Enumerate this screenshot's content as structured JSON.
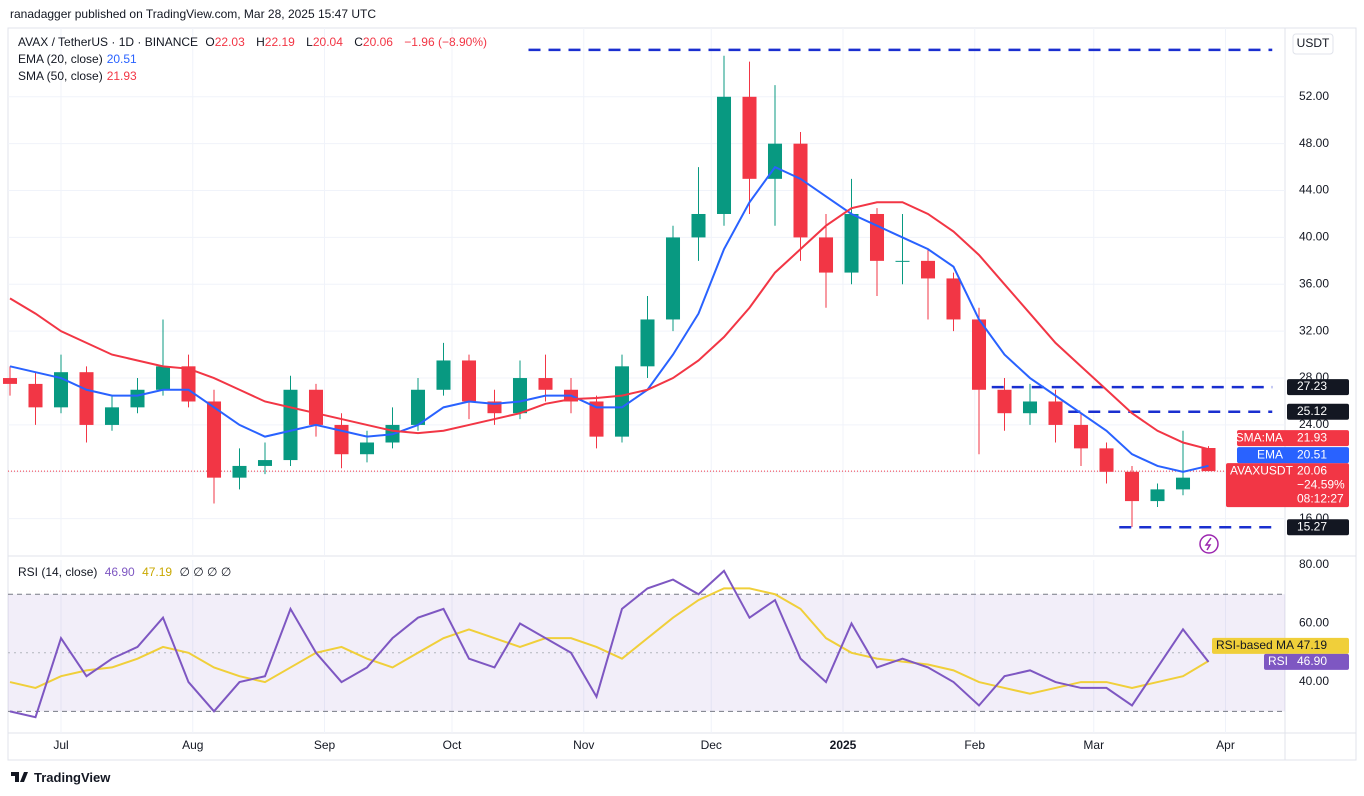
{
  "header": {
    "published": "ranadagger published on TradingView.com, Mar 28, 2025 15:47 UTC"
  },
  "footer": {
    "brand": "TradingView"
  },
  "chart_data": [
    {
      "type": "candlestick",
      "symbol": "AVAX / TetherUS · 1D · BINANCE",
      "legend_keys": [
        "O",
        "H",
        "L",
        "C"
      ],
      "change": "−1.96 (−8.90%)",
      "currency": "USDT",
      "price_label_name": "AVAXUSDT",
      "price_label_change": "−24.59%",
      "price_label_timer": "08:12:27",
      "up_color": "#089981",
      "down_color": "#f23645",
      "x": [
        0,
        6,
        12,
        18,
        24,
        30,
        36,
        42,
        48,
        54,
        60,
        66,
        72,
        78,
        84,
        90,
        96,
        102,
        108,
        114,
        120,
        126,
        132,
        138,
        144,
        150,
        156,
        162,
        168,
        174,
        180,
        186,
        192,
        198,
        204,
        210,
        216,
        222,
        228,
        234,
        240,
        246,
        252,
        258,
        264,
        270,
        276,
        282
      ],
      "open": [
        28,
        27.5,
        25.5,
        28.5,
        24,
        25.5,
        27,
        29,
        26,
        19.5,
        20.5,
        21,
        27,
        24,
        21.5,
        22.5,
        24,
        27,
        29.5,
        26,
        25,
        28,
        27,
        26,
        23,
        29,
        33,
        40,
        42,
        52,
        45,
        48,
        40,
        37,
        42,
        38,
        38,
        36.5,
        33,
        27,
        25,
        26,
        24,
        22,
        20,
        17.5,
        18.5,
        22.03
      ],
      "high": [
        29,
        28.5,
        30,
        29,
        26.5,
        28,
        33,
        30,
        27,
        22,
        22.5,
        28.2,
        27.5,
        25,
        23.5,
        25.5,
        28,
        31,
        30,
        27,
        29.5,
        30,
        28,
        26.5,
        30,
        35,
        41,
        46,
        55.5,
        55,
        53,
        49,
        42,
        45,
        42.5,
        42,
        39,
        37,
        34,
        28,
        27.5,
        27,
        25,
        22.5,
        20.5,
        19,
        23.5,
        22.19
      ],
      "low": [
        26.5,
        24,
        25,
        22.5,
        23.5,
        25,
        26.5,
        25.5,
        17.3,
        18.5,
        19.8,
        20.5,
        23,
        20.3,
        20.8,
        22,
        23.5,
        26.5,
        24.5,
        24,
        24.5,
        26,
        25,
        22,
        22.5,
        28,
        32,
        38,
        41,
        42,
        41,
        38,
        34,
        36,
        35,
        36,
        33,
        32,
        21.5,
        23.5,
        24,
        22.5,
        20.5,
        19,
        15.3,
        17,
        18,
        20.04
      ],
      "close": [
        27.5,
        25.5,
        28.5,
        24,
        25.5,
        27,
        29,
        26,
        19.5,
        20.5,
        21,
        27,
        24,
        21.5,
        22.5,
        24,
        27,
        29.5,
        26,
        25,
        28,
        27,
        26,
        23,
        29,
        33,
        40,
        42,
        52,
        45,
        48,
        40,
        37,
        42,
        38,
        38,
        36.5,
        33,
        27,
        25,
        26,
        24,
        22,
        20,
        17.5,
        18.5,
        19.5,
        20.06
      ],
      "overlays": [
        {
          "name": "EMA (20, close)",
          "axis_label": "EMA",
          "color": "#2962ff",
          "values": [
            29,
            28.5,
            28,
            27,
            26.5,
            26.5,
            27,
            27,
            25.5,
            24,
            23,
            23.5,
            24,
            23.5,
            23,
            23.2,
            24,
            25.5,
            26,
            25.8,
            26,
            26.5,
            26.5,
            25.5,
            25.5,
            27,
            30,
            33.5,
            39,
            43,
            46,
            45,
            43.5,
            42,
            41,
            40,
            39,
            37.5,
            33,
            30,
            28,
            26.5,
            25,
            23.5,
            21.5,
            20.5,
            20,
            20.51
          ]
        },
        {
          "name": "SMA (50, close)",
          "axis_label": "SMA:MA",
          "color": "#f23645",
          "values": [
            34.8,
            33.5,
            32,
            31,
            30,
            29.5,
            29,
            28.8,
            28,
            27,
            26,
            25.5,
            25,
            24.5,
            24,
            23.5,
            23.3,
            23.5,
            24,
            24.5,
            25,
            25.8,
            26.2,
            26.3,
            26.5,
            27,
            28,
            29.5,
            31.5,
            34,
            37,
            39,
            41,
            42.5,
            43,
            43,
            42,
            40.5,
            38.5,
            36,
            33.5,
            31,
            29,
            27,
            25,
            23.5,
            22.5,
            21.93
          ]
        }
      ],
      "levels": [
        {
          "value": 56,
          "x_from": 122,
          "x_to": 297
        },
        {
          "value": 27.23,
          "x_from": 231,
          "x_to": 297
        },
        {
          "value": 25.12,
          "x_from": 249,
          "x_to": 297
        },
        {
          "value": 15.27,
          "x_from": 261,
          "x_to": 297
        }
      ],
      "level_color": "#1a2fd0",
      "xlim": [
        0,
        300
      ],
      "xticks": [
        {
          "value": 12,
          "label": "Jul"
        },
        {
          "value": 43,
          "label": "Aug"
        },
        {
          "value": 74,
          "label": "Sep"
        },
        {
          "value": 104,
          "label": "Oct"
        },
        {
          "value": 135,
          "label": "Nov"
        },
        {
          "value": 165,
          "label": "Dec"
        },
        {
          "value": 196,
          "label": "2025"
        },
        {
          "value": 227,
          "label": "Feb"
        },
        {
          "value": 255,
          "label": "Mar"
        },
        {
          "value": 286,
          "label": "Apr"
        }
      ],
      "ylim": [
        12.9,
        57.7
      ],
      "yticks": [
        {
          "value": 16,
          "label": "16.00"
        },
        {
          "value": 20,
          "label": "20.00"
        },
        {
          "value": 24,
          "label": "24.00"
        },
        {
          "value": 28,
          "label": "28.00"
        },
        {
          "value": 32,
          "label": "32.00"
        },
        {
          "value": 36,
          "label": "36.00"
        },
        {
          "value": 40,
          "label": "40.00"
        },
        {
          "value": 44,
          "label": "44.00"
        },
        {
          "value": 48,
          "label": "48.00"
        },
        {
          "value": 52,
          "label": "52.00"
        }
      ],
      "grid": true
    },
    {
      "type": "line",
      "title": "RSI (14, close)",
      "empty_fields": "∅ ∅ ∅ ∅",
      "band": [
        30,
        70
      ],
      "midline": 50,
      "series": [
        {
          "name": "RSI",
          "color": "#7e57c2",
          "last_label": "46.90",
          "values": [
            30,
            28,
            55,
            42,
            48,
            52,
            62,
            40,
            30,
            40,
            42,
            65,
            50,
            40,
            45,
            55,
            62,
            65,
            48,
            45,
            60,
            55,
            50,
            35,
            65,
            72,
            75,
            70,
            78,
            62,
            68,
            48,
            40,
            60,
            45,
            48,
            45,
            40,
            32,
            42,
            44,
            40,
            38,
            38,
            32,
            45,
            58,
            46.9
          ]
        },
        {
          "name": "RSI-based MA",
          "color": "#f0cf3a",
          "values": [
            40,
            38,
            42,
            44,
            45,
            48,
            52,
            50,
            45,
            42,
            40,
            45,
            50,
            52,
            48,
            45,
            50,
            55,
            58,
            55,
            52,
            55,
            55,
            52,
            48,
            55,
            62,
            68,
            72,
            72,
            70,
            65,
            55,
            50,
            48,
            47,
            46,
            44,
            40,
            38,
            36,
            38,
            40,
            40,
            38,
            40,
            42,
            47.19
          ]
        }
      ],
      "ylim": [
        22.6,
        81.7
      ],
      "yticks": [
        {
          "value": 40,
          "label": "40.00"
        },
        {
          "value": 60,
          "label": "60.00"
        },
        {
          "value": 80,
          "label": "80.00"
        }
      ]
    }
  ]
}
